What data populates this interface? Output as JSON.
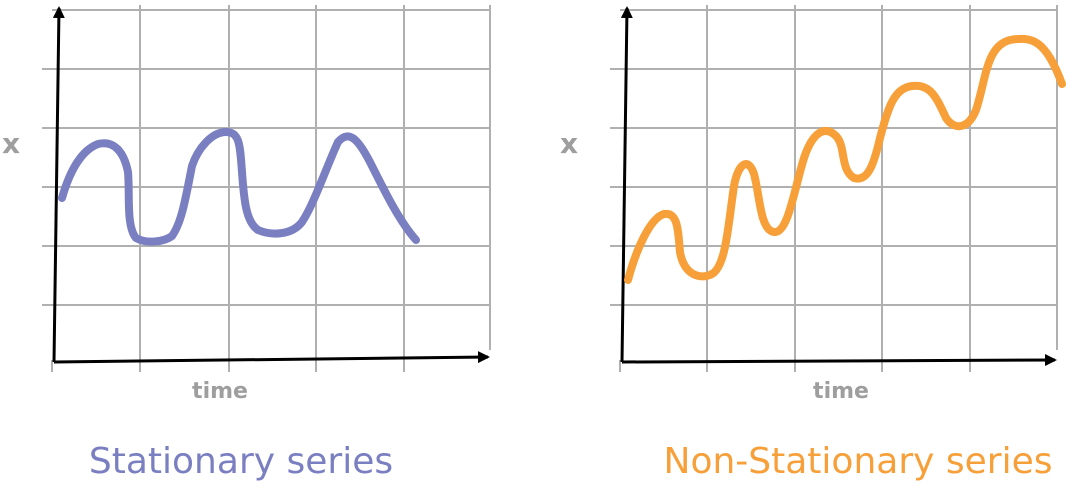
{
  "panels": [
    {
      "y_label": "x",
      "x_label": "time",
      "caption": "Stationary series",
      "color": "#7a7fc1"
    },
    {
      "y_label": "x",
      "x_label": "time",
      "caption": "Non-Stationary series",
      "color": "#f7a03a"
    }
  ],
  "colors": {
    "grid": "#b0b0b0",
    "axis": "#000000",
    "label": "#9e9e9e"
  }
}
